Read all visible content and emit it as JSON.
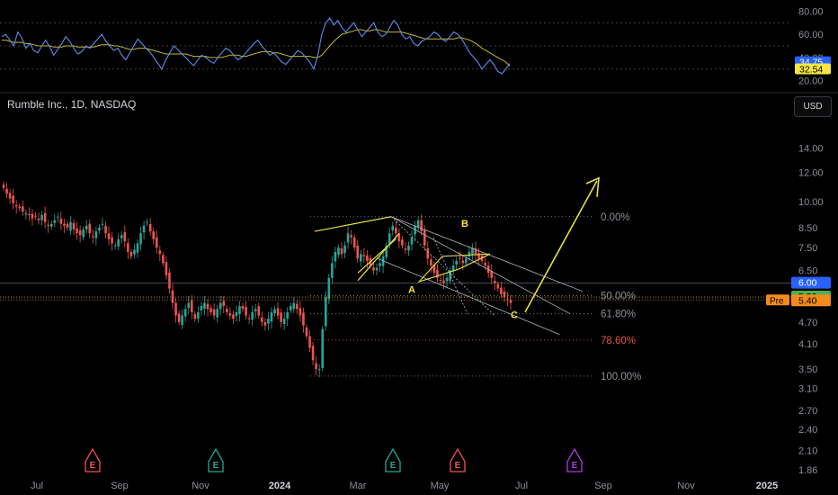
{
  "header": {
    "title": "Rumble Inc., 1D, NASDAQ",
    "currency": "USD"
  },
  "colors": {
    "up": "#26a69a",
    "down": "#ef5350",
    "rsi": "#5b8def",
    "rsi_ma": "#c9b82b",
    "pattern": "#e8e04a",
    "fib_red": "#e0524f",
    "grid": "#1a1a1a",
    "text": "#8c8f99"
  },
  "chart_data": [
    {
      "type": "line",
      "panel": "oscillator",
      "y_ticks": [
        80.0,
        60.0,
        40.0,
        20.0
      ],
      "ylim": [
        15,
        85
      ],
      "reference_lines": [
        70,
        50,
        30
      ],
      "series": [
        {
          "role": "oscillator",
          "last": 34.75,
          "label": "34.75"
        },
        {
          "role": "moving-average",
          "last": 32.54,
          "label": "32.54"
        }
      ],
      "oscillator_values": [
        58,
        60,
        55,
        50,
        62,
        57,
        48,
        52,
        46,
        44,
        50,
        55,
        49,
        42,
        47,
        52,
        58,
        54,
        48,
        43,
        45,
        50,
        48,
        52,
        56,
        60,
        54,
        50,
        46,
        48,
        42,
        38,
        44,
        50,
        56,
        52,
        48,
        45,
        40,
        35,
        30,
        38,
        44,
        50,
        47,
        43,
        40,
        36,
        33,
        38,
        42,
        40,
        37,
        35,
        40,
        44,
        48,
        46,
        42,
        38,
        40,
        44,
        48,
        52,
        55,
        50,
        46,
        42,
        44,
        40,
        36,
        34,
        38,
        42,
        46,
        44,
        40,
        36,
        30,
        42,
        60,
        70,
        74,
        68,
        72,
        66,
        62,
        66,
        70,
        64,
        58,
        62,
        66,
        70,
        62,
        58,
        60,
        66,
        72,
        68,
        60,
        56,
        58,
        52,
        50,
        54,
        56,
        58,
        62,
        60,
        56,
        54,
        58,
        62,
        60,
        56,
        50,
        44,
        40,
        36,
        30,
        34,
        38,
        34,
        28,
        26,
        30,
        34.75
      ],
      "ma_values": [
        55,
        55,
        54,
        53,
        53,
        53,
        52,
        52,
        51,
        50,
        50,
        50,
        50,
        49,
        49,
        49,
        50,
        50,
        50,
        49,
        49,
        49,
        49,
        49,
        50,
        51,
        51,
        51,
        50,
        50,
        49,
        48,
        47,
        47,
        48,
        48,
        48,
        47,
        46,
        45,
        44,
        43,
        43,
        43,
        43,
        43,
        43,
        42,
        41,
        41,
        41,
        41,
        40,
        40,
        40,
        40,
        41,
        42,
        42,
        42,
        41,
        41,
        42,
        43,
        44,
        45,
        45,
        45,
        44,
        44,
        43,
        42,
        41,
        41,
        41,
        41,
        41,
        41,
        40,
        40,
        42,
        46,
        50,
        54,
        57,
        60,
        61,
        62,
        63,
        64,
        64,
        63,
        63,
        64,
        64,
        63,
        62,
        62,
        62,
        62,
        62,
        61,
        60,
        59,
        58,
        57,
        56,
        56,
        56,
        56,
        56,
        56,
        56,
        56,
        57,
        57,
        56,
        55,
        53,
        51,
        48,
        46,
        44,
        42,
        40,
        38,
        36,
        32.54
      ]
    },
    {
      "type": "candlestick",
      "panel": "price",
      "title": "Rumble Inc., 1D, NASDAQ",
      "log_scale": true,
      "ylim": [
        1.8,
        17
      ],
      "y_ticks": [
        14.0,
        12.0,
        10.0,
        8.5,
        7.5,
        6.5,
        5.5,
        4.7,
        4.1,
        3.5,
        3.1,
        2.7,
        2.4,
        2.1,
        1.86
      ],
      "x_ticks": [
        "Jul",
        "Sep",
        "Nov",
        "2024",
        "Mar",
        "May",
        "Jul",
        "Sep",
        "Nov",
        "2025"
      ],
      "close_series": [
        10.9,
        10.5,
        10.2,
        9.9,
        9.7,
        9.6,
        9.4,
        9.3,
        9.2,
        9.0,
        9.1,
        8.9,
        9.2,
        8.8,
        8.6,
        8.7,
        8.9,
        9.1,
        8.7,
        8.6,
        8.5,
        8.8,
        8.4,
        8.2,
        8.1,
        8.4,
        8.6,
        8.2,
        8.0,
        8.3,
        8.5,
        8.7,
        8.2,
        7.9,
        7.7,
        7.6,
        7.9,
        8.1,
        7.8,
        7.3,
        7.1,
        7.4,
        7.7,
        8.2,
        8.6,
        8.8,
        8.3,
        7.9,
        7.5,
        7.2,
        6.8,
        6.3,
        5.8,
        5.3,
        4.9,
        4.7,
        4.9,
        5.1,
        5.3,
        5.0,
        4.8,
        5.0,
        5.2,
        5.3,
        5.1,
        5.0,
        4.9,
        5.1,
        5.3,
        5.2,
        5.0,
        4.9,
        4.8,
        5.0,
        5.2,
        5.1,
        4.9,
        4.8,
        5.0,
        5.1,
        4.9,
        4.7,
        4.6,
        4.8,
        5.0,
        5.1,
        4.9,
        4.7,
        4.8,
        5.0,
        5.2,
        5.3,
        5.1,
        4.9,
        4.6,
        4.3,
        4.0,
        3.7,
        3.5,
        3.5,
        4.5,
        5.5,
        6.2,
        6.8,
        7.3,
        7.5,
        7.2,
        7.6,
        8.2,
        8.0,
        7.5,
        7.0,
        7.2,
        7.1,
        6.9,
        6.7,
        6.5,
        6.6,
        6.8,
        7.1,
        7.6,
        8.2,
        8.6,
        8.2,
        7.8,
        7.6,
        7.4,
        7.6,
        8.0,
        8.6,
        8.9,
        8.3,
        7.6,
        7.0,
        6.7,
        6.4,
        6.2,
        6.1,
        6.0,
        6.2,
        6.5,
        6.7,
        6.9,
        7.0,
        6.8,
        7.0,
        7.3,
        7.5,
        7.2,
        7.0,
        6.9,
        6.7,
        6.4,
        6.2,
        6.0,
        5.8,
        5.6,
        5.5,
        5.4,
        5.3
      ],
      "horizontal_levels": [
        {
          "price": 6.0,
          "label": "6.00"
        },
        {
          "price": 5.5,
          "label": "5.50"
        },
        {
          "price": 5.4,
          "label": "5.40",
          "tag": "Pre"
        }
      ],
      "fibonacci": [
        {
          "level": "0.00%",
          "price": 9.1
        },
        {
          "level": "50.00%",
          "price": 5.55
        },
        {
          "level": "61.80%",
          "price": 4.95
        },
        {
          "level": "78.60%",
          "price": 4.2
        },
        {
          "level": "100.00%",
          "price": 3.35
        }
      ],
      "wave_labels": [
        "A",
        "B",
        "C"
      ],
      "event_markers": [
        {
          "letter": "E",
          "kind": "earnings-past"
        },
        {
          "letter": "E",
          "kind": "earnings"
        },
        {
          "letter": "E",
          "kind": "earnings"
        },
        {
          "letter": "E",
          "kind": "earnings-past"
        },
        {
          "letter": "E",
          "kind": "earnings-upcoming"
        }
      ]
    }
  ]
}
